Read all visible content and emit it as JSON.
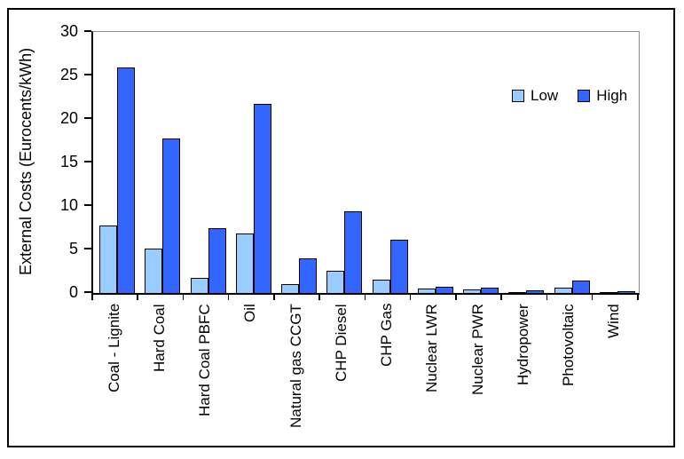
{
  "figure": {
    "background": "#FFFFFF",
    "frame_border_color": "#000000"
  },
  "chart_data": {
    "type": "bar",
    "title": "",
    "xlabel": "",
    "ylabel": "External Costs (Eurocents/kWh)",
    "ylim": [
      0,
      30
    ],
    "yticks": [
      0,
      5,
      10,
      15,
      20,
      25,
      30
    ],
    "grid": "top-boundary-line-only",
    "legend_position": "top-right-inside",
    "categories": [
      "Coal - Lignite",
      "Hard Coal",
      "Hard Coal PBFC",
      "Oil",
      "Natural gas CCGT",
      "CHP Diesel",
      "CHP Gas",
      "Nuclear LWR",
      "Nuclear PWR",
      "Hydropower",
      "Photovoltaic",
      "Wind"
    ],
    "series": [
      {
        "name": "Low",
        "color": "#99CCFF",
        "values": [
          7.8,
          5.1,
          1.7,
          6.8,
          1.0,
          2.6,
          1.5,
          0.5,
          0.4,
          0.05,
          0.65,
          0.05
        ]
      },
      {
        "name": "High",
        "color": "#3366FF",
        "values": [
          25.9,
          17.8,
          7.5,
          21.7,
          4.0,
          9.4,
          6.1,
          0.7,
          0.6,
          0.3,
          1.4,
          0.25
        ]
      }
    ],
    "bar_border_color": "#000000",
    "axis_color": "#000000",
    "gridline_color": "#8C8C8C",
    "text_color": "#000000"
  }
}
